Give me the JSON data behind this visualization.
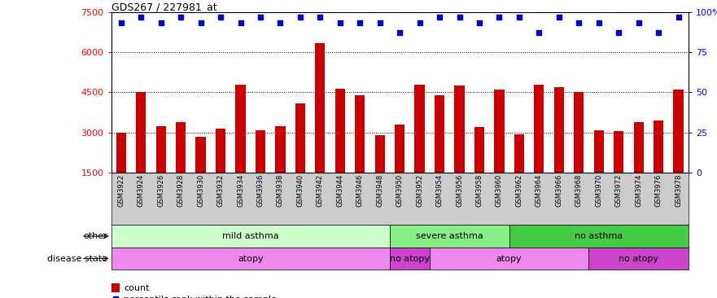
{
  "title": "GDS267 / 227981_at",
  "samples": [
    "GSM3922",
    "GSM3924",
    "GSM3926",
    "GSM3928",
    "GSM3930",
    "GSM3932",
    "GSM3934",
    "GSM3936",
    "GSM3938",
    "GSM3940",
    "GSM3942",
    "GSM3944",
    "GSM3946",
    "GSM3948",
    "GSM3950",
    "GSM3952",
    "GSM3954",
    "GSM3956",
    "GSM3958",
    "GSM3960",
    "GSM3962",
    "GSM3964",
    "GSM3966",
    "GSM3968",
    "GSM3970",
    "GSM3972",
    "GSM3974",
    "GSM3976",
    "GSM3978"
  ],
  "counts": [
    3000,
    4500,
    3250,
    3400,
    2850,
    3150,
    4800,
    3100,
    3250,
    4100,
    6350,
    4650,
    4400,
    2900,
    3300,
    4800,
    4400,
    4750,
    3200,
    4600,
    2950,
    4800,
    4700,
    4500,
    3100,
    3050,
    3400,
    3450,
    4600
  ],
  "percentiles": [
    93,
    97,
    93,
    97,
    93,
    97,
    93,
    97,
    93,
    97,
    97,
    93,
    93,
    93,
    87,
    93,
    97,
    97,
    93,
    97,
    97,
    87,
    97,
    93,
    93,
    87,
    93,
    87,
    97
  ],
  "ylim_left": [
    1500,
    7500
  ],
  "ylim_right": [
    0,
    100
  ],
  "yticks_left": [
    1500,
    3000,
    4500,
    6000,
    7500
  ],
  "yticks_right": [
    0,
    25,
    50,
    75,
    100
  ],
  "bar_color": "#cc0000",
  "dot_color": "#0000cc",
  "bar_width": 0.5,
  "tick_label_bg": "#cccccc",
  "groups_other": [
    {
      "label": "mild asthma",
      "start": 0,
      "end": 14,
      "color": "#ccffcc"
    },
    {
      "label": "severe asthma",
      "start": 14,
      "end": 20,
      "color": "#88ee88"
    },
    {
      "label": "no asthma",
      "start": 20,
      "end": 29,
      "color": "#44cc44"
    }
  ],
  "groups_disease": [
    {
      "label": "atopy",
      "start": 0,
      "end": 14,
      "color": "#ee88ee"
    },
    {
      "label": "no atopy",
      "start": 14,
      "end": 16,
      "color": "#cc44cc"
    },
    {
      "label": "atopy",
      "start": 16,
      "end": 24,
      "color": "#ee88ee"
    },
    {
      "label": "no atopy",
      "start": 24,
      "end": 29,
      "color": "#cc44cc"
    }
  ]
}
